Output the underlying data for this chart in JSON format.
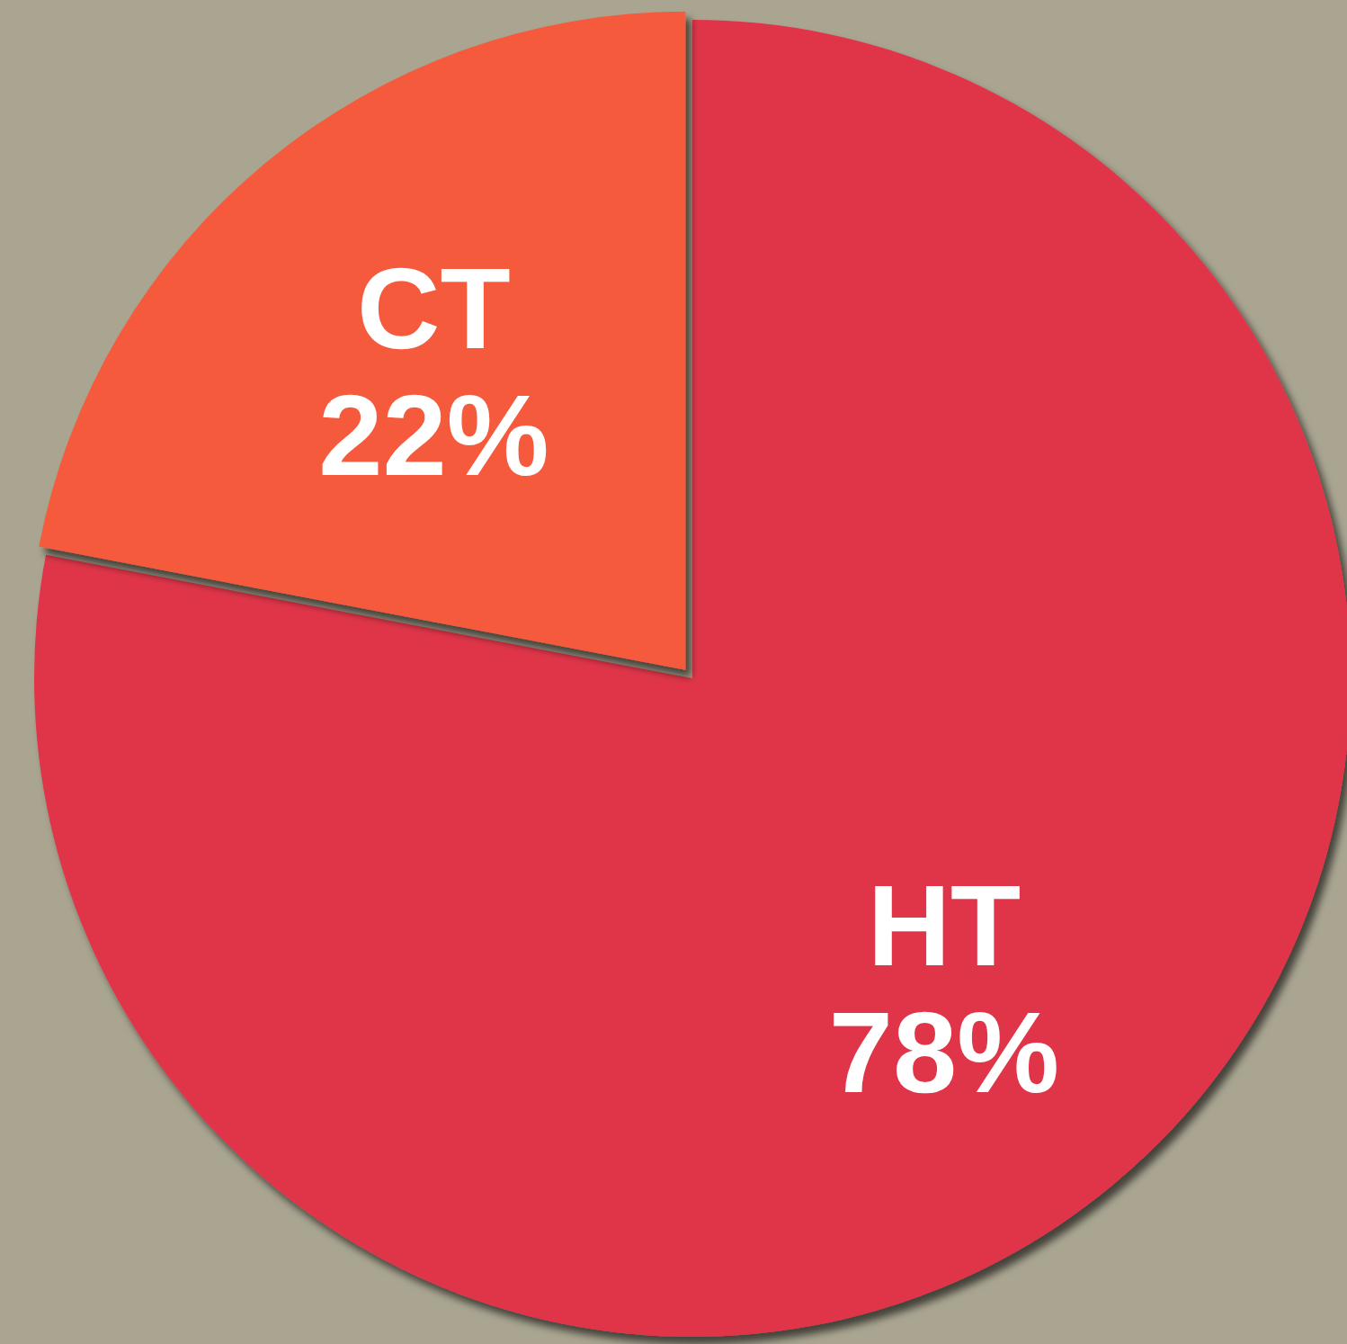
{
  "chart_data": {
    "type": "pie",
    "categories": [
      "HT",
      "CT"
    ],
    "values": [
      78,
      22
    ],
    "colors": [
      "#e0364a",
      "#f55a3c"
    ],
    "value_labels": [
      "78%",
      "22%"
    ]
  }
}
